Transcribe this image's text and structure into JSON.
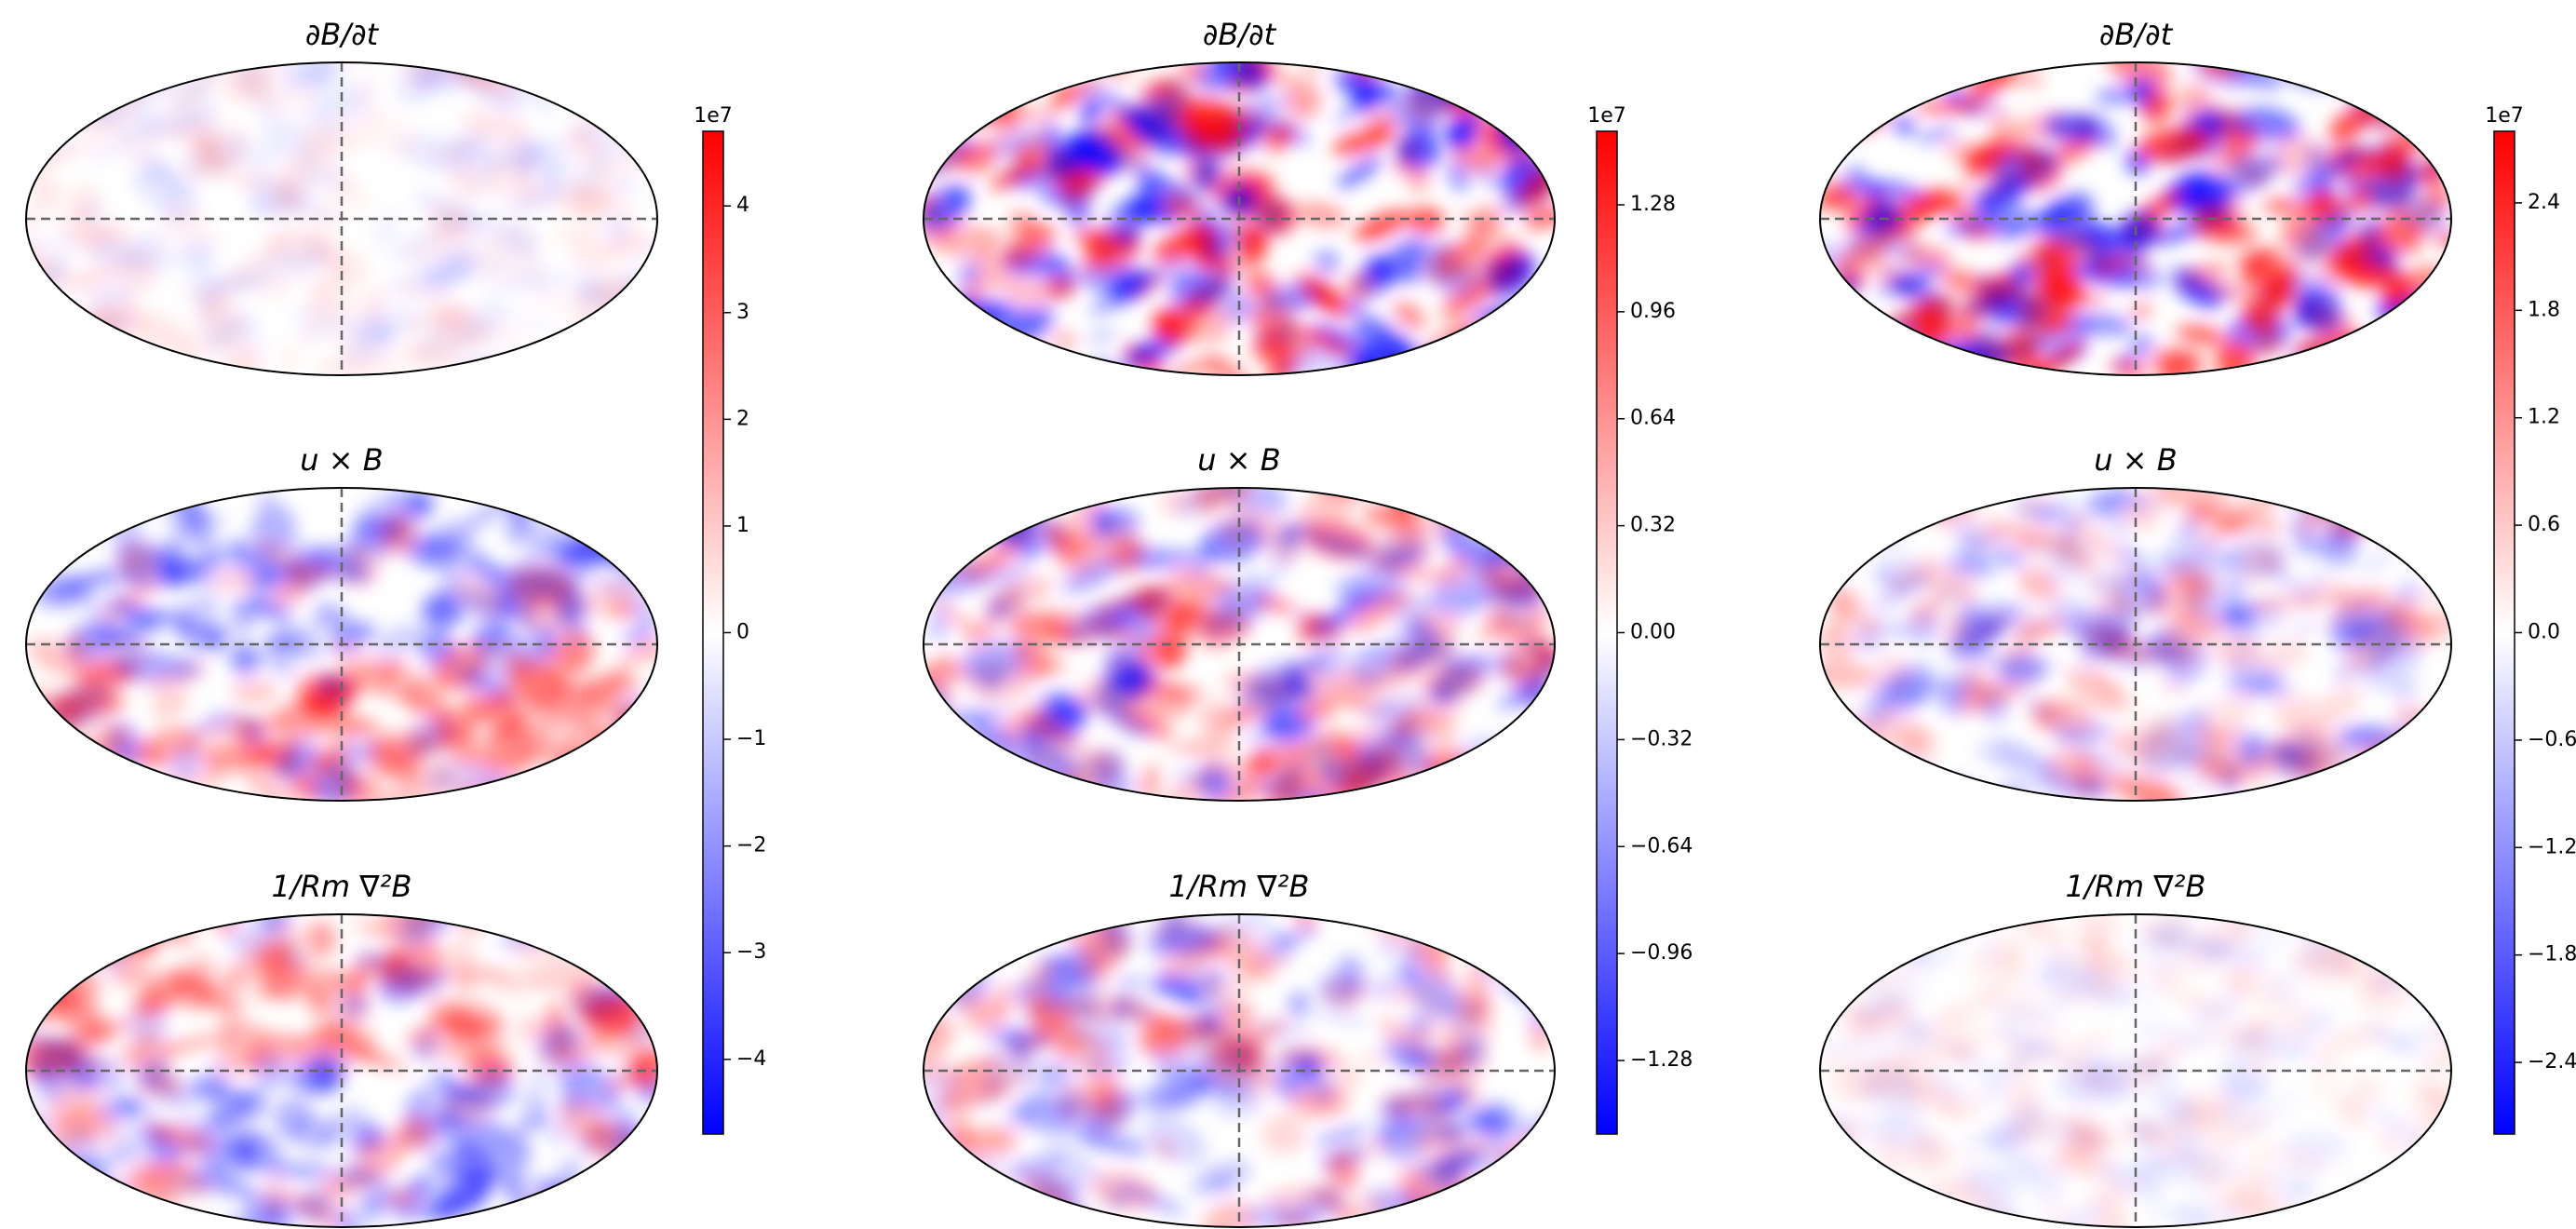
{
  "chart_data": [
    {
      "type": "mollweide",
      "titles": [
        "∂B/∂t",
        "u × B",
        "1/Rm ∇²B"
      ],
      "colormap": [
        "#0000ff",
        "#ffffff",
        "#ff0000"
      ],
      "offset_label": "1e7",
      "ylim": [
        -4.7,
        4.7
      ],
      "yticks": [
        {
          "value": 4,
          "label": "4"
        },
        {
          "value": 3,
          "label": "3"
        },
        {
          "value": 2,
          "label": "2"
        },
        {
          "value": 1,
          "label": "1"
        },
        {
          "value": 0,
          "label": "0"
        },
        {
          "value": -1,
          "label": "−1"
        },
        {
          "value": -2,
          "label": "−2"
        },
        {
          "value": -3,
          "label": "−3"
        },
        {
          "value": -4,
          "label": "−4"
        }
      ]
    },
    {
      "type": "mollweide",
      "titles": [
        "∂B/∂t",
        "u × B",
        "1/Rm ∇²B"
      ],
      "colormap": [
        "#0000ff",
        "#ffffff",
        "#ff0000"
      ],
      "offset_label": "1e7",
      "ylim": [
        -1.5,
        1.5
      ],
      "yticks": [
        {
          "value": 1.28,
          "label": "1.28"
        },
        {
          "value": 0.96,
          "label": "0.96"
        },
        {
          "value": 0.64,
          "label": "0.64"
        },
        {
          "value": 0.32,
          "label": "0.32"
        },
        {
          "value": 0,
          "label": "0.00"
        },
        {
          "value": -0.32,
          "label": "−0.32"
        },
        {
          "value": -0.64,
          "label": "−0.64"
        },
        {
          "value": -0.96,
          "label": "−0.96"
        },
        {
          "value": -1.28,
          "label": "−1.28"
        }
      ]
    },
    {
      "type": "mollweide",
      "titles": [
        "∂B/∂t",
        "u × B",
        "1/Rm ∇²B"
      ],
      "colormap": [
        "#0000ff",
        "#ffffff",
        "#ff0000"
      ],
      "offset_label": "1e7",
      "ylim": [
        -2.8,
        2.8
      ],
      "yticks": [
        {
          "value": 2.4,
          "label": "2.4"
        },
        {
          "value": 1.8,
          "label": "1.8"
        },
        {
          "value": 1.2,
          "label": "1.2"
        },
        {
          "value": 0.6,
          "label": "0.6"
        },
        {
          "value": 0,
          "label": "0.0"
        },
        {
          "value": -0.6,
          "label": "−0.6"
        },
        {
          "value": -1.2,
          "label": "−1.2"
        },
        {
          "value": -1.8,
          "label": "−1.8"
        },
        {
          "value": -2.4,
          "label": "−2.4"
        }
      ]
    }
  ]
}
